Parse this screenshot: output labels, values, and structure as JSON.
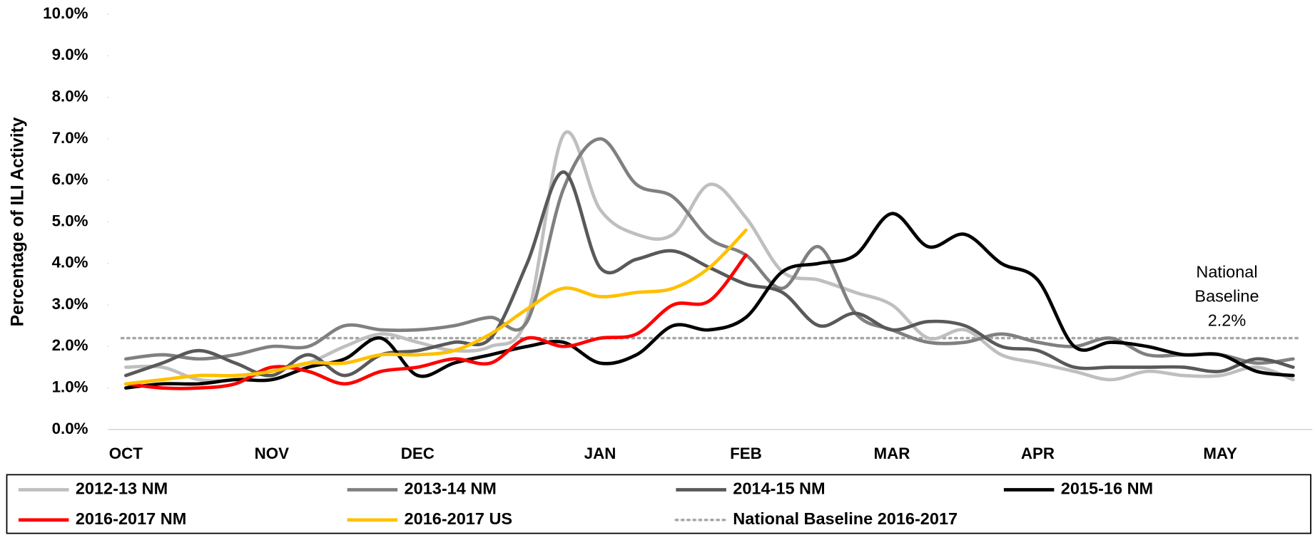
{
  "chart_data": {
    "type": "line",
    "y_label": "Percentage of ILI Activity",
    "categories": [
      "OCT",
      null,
      null,
      null,
      "NOV",
      null,
      null,
      null,
      "DEC",
      null,
      null,
      null,
      null,
      "JAN",
      null,
      null,
      null,
      "FEB",
      null,
      null,
      null,
      "MAR",
      null,
      null,
      null,
      "APR",
      null,
      null,
      null,
      null,
      "MAY",
      null,
      null
    ],
    "ylim": [
      0,
      10
    ],
    "yticks": [
      {
        "value": 0,
        "label": "0.0%"
      },
      {
        "value": 1,
        "label": "1.0%"
      },
      {
        "value": 2,
        "label": "2.0%"
      },
      {
        "value": 3,
        "label": "3.0%"
      },
      {
        "value": 4,
        "label": "4.0%"
      },
      {
        "value": 5,
        "label": "5.0%"
      },
      {
        "value": 6,
        "label": "6.0%"
      },
      {
        "value": 7,
        "label": "7.0%"
      },
      {
        "value": 8,
        "label": "8.0%"
      },
      {
        "value": 9,
        "label": "9.0%"
      },
      {
        "value": 10,
        "label": "10.0%"
      }
    ],
    "grid": false,
    "legend": "bottom",
    "series": [
      {
        "name": "2012-13 NM",
        "color": "#bfbfbf",
        "values": [
          1.5,
          1.5,
          1.2,
          1.2,
          1.4,
          1.6,
          2.0,
          2.3,
          2.1,
          1.9,
          2.0,
          2.7,
          7.1,
          5.3,
          4.7,
          4.7,
          5.9,
          5.1,
          3.8,
          3.6,
          3.3,
          3.0,
          2.2,
          2.4,
          1.8,
          1.6,
          1.4,
          1.2,
          1.4,
          1.3,
          1.3,
          1.5,
          1.2
        ]
      },
      {
        "name": "2013-14 NM",
        "color": "#808080",
        "values": [
          1.7,
          1.8,
          1.7,
          1.8,
          2.0,
          2.0,
          2.5,
          2.4,
          2.4,
          2.5,
          2.7,
          2.6,
          5.8,
          7.0,
          5.9,
          5.6,
          4.6,
          4.2,
          3.4,
          4.4,
          2.8,
          2.4,
          2.1,
          2.1,
          2.3,
          2.1,
          2.0,
          2.2,
          1.8,
          1.8,
          1.8,
          1.6,
          1.7
        ]
      },
      {
        "name": "2014-15 NM",
        "color": "#595959",
        "values": [
          1.3,
          1.6,
          1.9,
          1.6,
          1.3,
          1.8,
          1.3,
          1.8,
          1.9,
          2.1,
          2.2,
          4.0,
          6.2,
          3.9,
          4.1,
          4.3,
          3.9,
          3.5,
          3.3,
          2.5,
          2.8,
          2.4,
          2.6,
          2.5,
          2.0,
          1.9,
          1.5,
          1.5,
          1.5,
          1.5,
          1.4,
          1.7,
          1.5
        ]
      },
      {
        "name": "2015-16 NM",
        "color": "#000000",
        "values": [
          1.0,
          1.1,
          1.1,
          1.2,
          1.2,
          1.5,
          1.7,
          2.2,
          1.3,
          1.6,
          1.8,
          2.0,
          2.1,
          1.6,
          1.8,
          2.5,
          2.4,
          2.7,
          3.8,
          4.0,
          4.2,
          5.2,
          4.4,
          4.7,
          4.0,
          3.6,
          2.0,
          2.1,
          2.0,
          1.8,
          1.8,
          1.4,
          1.3
        ]
      },
      {
        "name": "2016-2017 NM",
        "color": "#ff0000",
        "values": [
          1.1,
          1.0,
          1.0,
          1.1,
          1.5,
          1.4,
          1.1,
          1.4,
          1.5,
          1.7,
          1.6,
          2.2,
          2.0,
          2.2,
          2.3,
          3.0,
          3.1,
          4.2,
          null,
          null,
          null,
          null,
          null,
          null,
          null,
          null,
          null,
          null,
          null,
          null,
          null,
          null,
          null
        ]
      },
      {
        "name": "2016-2017 US",
        "color": "#ffc000",
        "values": [
          1.1,
          1.2,
          1.3,
          1.3,
          1.4,
          1.6,
          1.6,
          1.8,
          1.8,
          1.9,
          2.3,
          2.9,
          3.4,
          3.2,
          3.3,
          3.4,
          3.9,
          4.8,
          null,
          null,
          null,
          null,
          null,
          null,
          null,
          null,
          null,
          null,
          null,
          null,
          null,
          null,
          null
        ]
      }
    ],
    "baseline": {
      "name": "National Baseline 2016-2017",
      "value": 2.2,
      "color": "#a6a6a6",
      "annotation": [
        "National",
        "Baseline",
        {
          "value": 2.2,
          "label": "2.2%"
        }
      ]
    }
  }
}
